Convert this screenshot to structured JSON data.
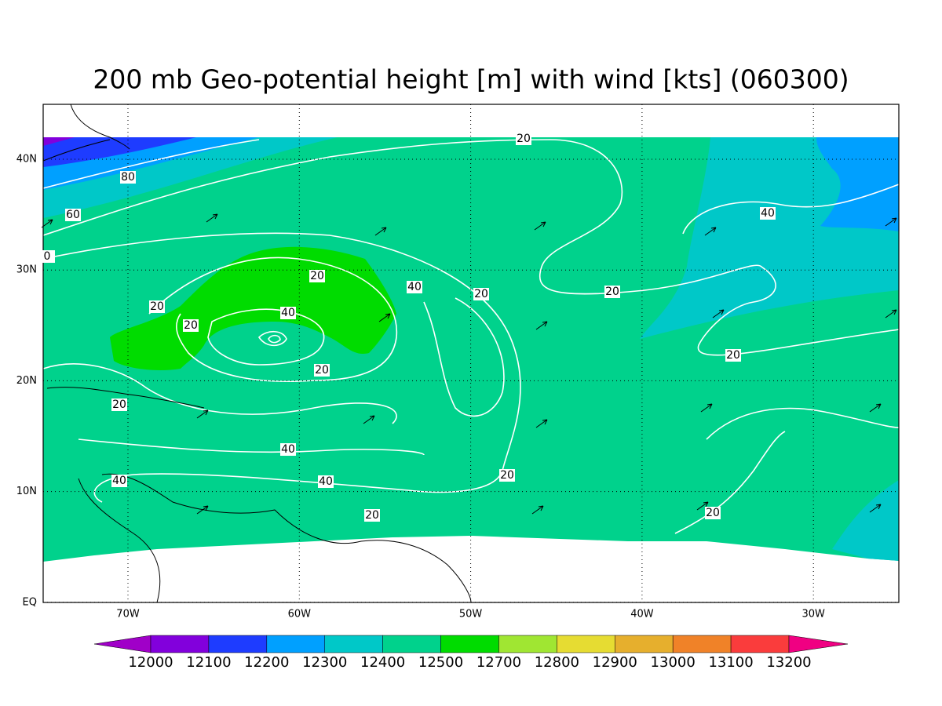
{
  "title": "200 mb Geo-potential height [m] with wind [kts] (060300)",
  "x_ticks": [
    "70W",
    "60W",
    "50W",
    "40W",
    "30W"
  ],
  "y_ticks": [
    "40N",
    "30N",
    "20N",
    "10N",
    "EQ"
  ],
  "contour_labels": [
    20,
    80,
    60,
    0,
    40,
    20,
    40,
    20,
    20,
    20,
    40,
    20,
    20,
    20,
    20,
    40,
    40,
    40,
    20,
    20,
    20
  ],
  "colorbar": {
    "levels": [
      12000,
      12100,
      12200,
      12300,
      12400,
      12500,
      12700,
      12800,
      12900,
      13000,
      13100,
      13200
    ],
    "colors": [
      "#a000c8",
      "#8200dc",
      "#1e3cff",
      "#00a0ff",
      "#00c8c8",
      "#00d28c",
      "#00dc00",
      "#a0e632",
      "#e6dc32",
      "#e6af2d",
      "#f08228",
      "#fa3c3c",
      "#f00082"
    ]
  }
}
